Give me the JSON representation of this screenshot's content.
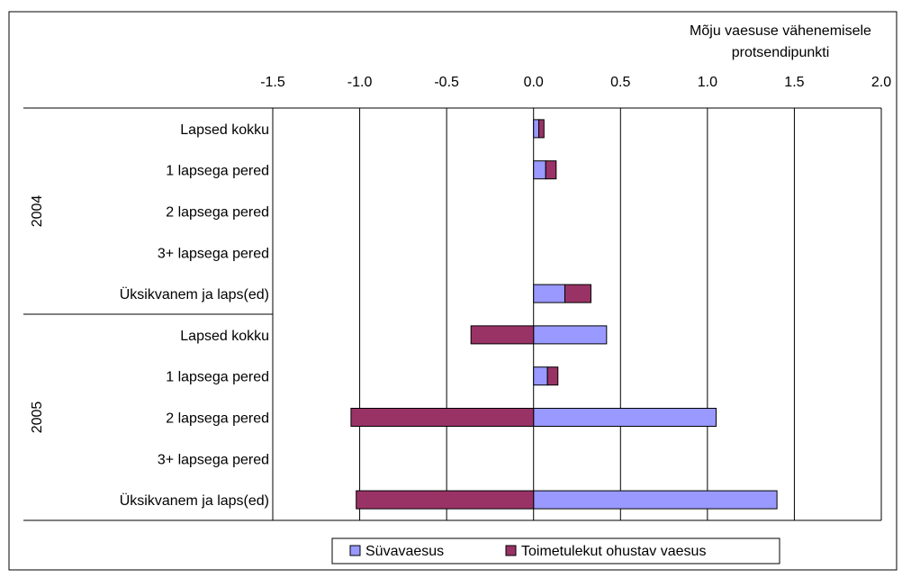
{
  "chart_data": {
    "type": "bar",
    "orientation": "horizontal",
    "stacked": true,
    "axis_title_line1": "Mõju vaesuse vähenemisele",
    "axis_title_line2": "protsendipunkti",
    "xlim": [
      -1.5,
      2.0
    ],
    "x_ticks": [
      "-1.5",
      "-1.0",
      "-0.5",
      "0.0",
      "0.5",
      "1.0",
      "1.5",
      "2.0"
    ],
    "x_tick_values": [
      -1.5,
      -1.0,
      -0.5,
      0.0,
      0.5,
      1.0,
      1.5,
      2.0
    ],
    "grid": "vertical",
    "legend_position": "bottom",
    "groups": [
      {
        "label": "2004",
        "categories": [
          "Lapsed kokku",
          "1 lapsega pered",
          "2 lapsega pered",
          "3+ lapsega pered",
          "Üksikvanem ja laps(ed)"
        ]
      },
      {
        "label": "2005",
        "categories": [
          "Lapsed kokku",
          "1 lapsega pered",
          "2 lapsega pered",
          "3+ lapsega pered",
          "Üksikvanem ja laps(ed)"
        ]
      }
    ],
    "series": [
      {
        "name": "Süvavaesus",
        "color": "#9999ff",
        "values": [
          0.03,
          0.07,
          0,
          0,
          0.18,
          0.42,
          0.08,
          1.05,
          0,
          1.4
        ]
      },
      {
        "name": "Toimetulekut ohustav vaesus",
        "color": "#993366",
        "values": [
          0.03,
          0.06,
          0,
          0,
          0.15,
          -0.36,
          0.06,
          -1.05,
          0,
          -1.02
        ]
      }
    ]
  }
}
